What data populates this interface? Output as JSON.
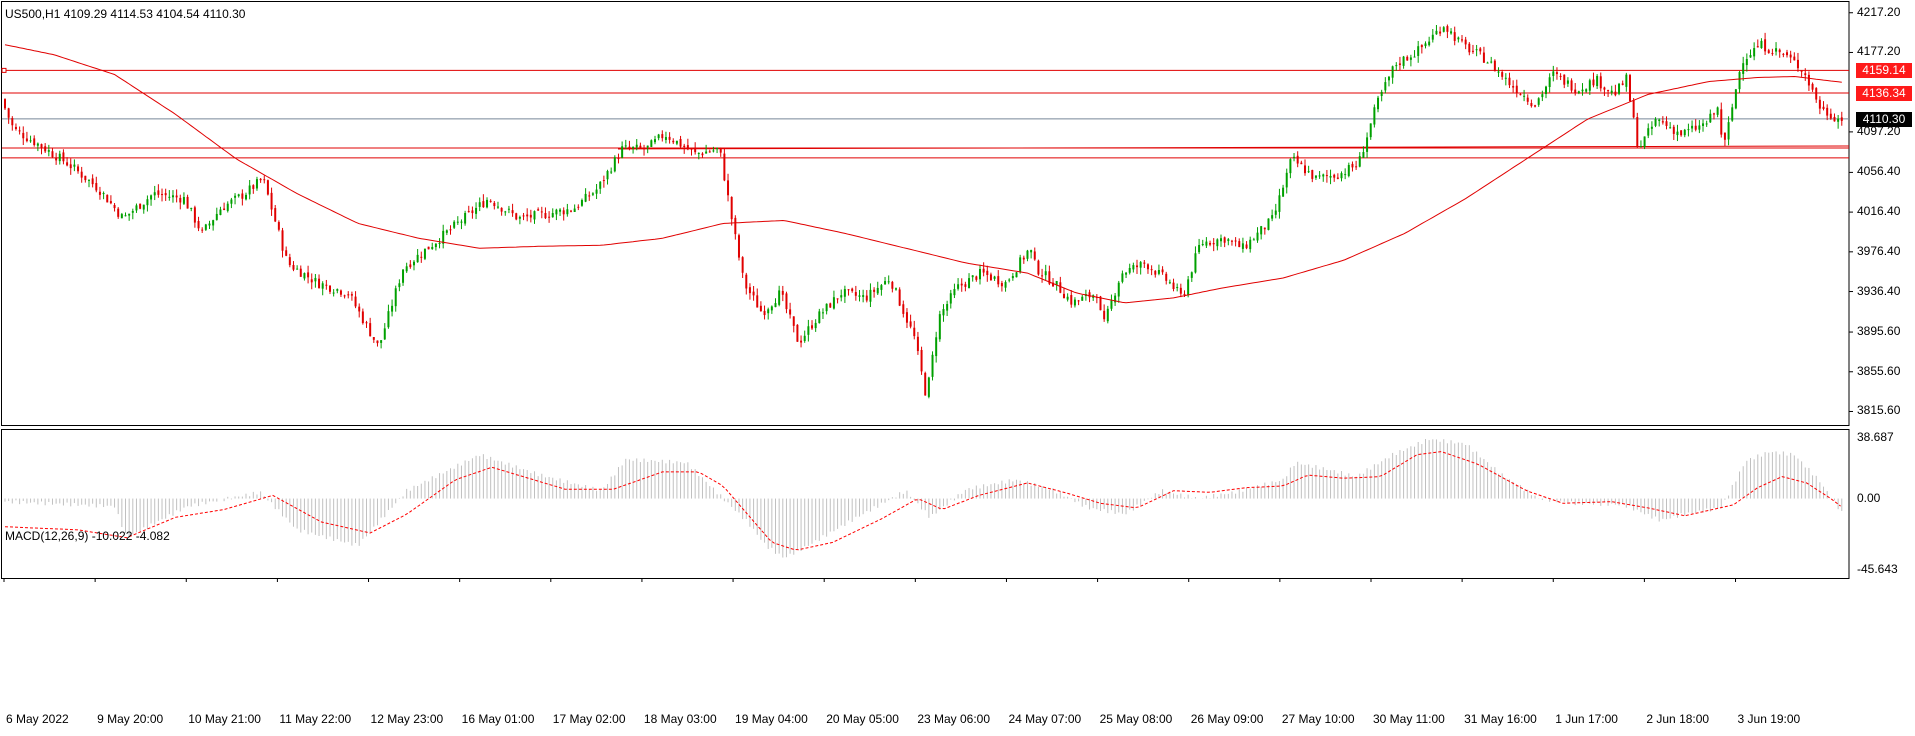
{
  "header": {
    "symbol_info": "US500,H1  4109.29 4114.53 4104.54 4110.30",
    "indicator_label": "MACD(12,26,9) -10.022 -4.082"
  },
  "colors": {
    "bull": "#00a000",
    "bear": "#e00000",
    "ma": "#e00000",
    "level": "#e00000",
    "bid_line": "#778899",
    "macd_hist": "#c0c0c0",
    "signal": "#ff0000",
    "tag_red": "#ff1a1a",
    "tag_black": "#000000"
  },
  "price_axis": {
    "ticks": [
      "4217.20",
      "4177.20",
      "4097.20",
      "4056.40",
      "4016.40",
      "3976.40",
      "3936.40",
      "3895.60",
      "3855.60",
      "3815.60"
    ],
    "tags": [
      {
        "value": 4159.14,
        "text": "4159.14",
        "style": "red"
      },
      {
        "value": 4136.34,
        "text": "4136.34",
        "style": "red"
      },
      {
        "value": 4110.3,
        "text": "4110.30",
        "style": "black"
      }
    ]
  },
  "macd_axis": {
    "ticks": [
      "38.687",
      "0.00",
      "-45.643"
    ]
  },
  "time_axis": {
    "labels": [
      "6 May 2022",
      "9 May 20:00",
      "10 May 21:00",
      "11 May 22:00",
      "12 May 23:00",
      "16 May 01:00",
      "17 May 02:00",
      "18 May 03:00",
      "19 May 04:00",
      "20 May 05:00",
      "23 May 06:00",
      "24 May 07:00",
      "25 May 08:00",
      "26 May 09:00",
      "27 May 10:00",
      "30 May 11:00",
      "31 May 16:00",
      "1 Jun 17:00",
      "2 Jun 18:00",
      "3 Jun 19:00"
    ]
  },
  "chart_data": {
    "type": "candlestick",
    "symbol": "US500",
    "timeframe": "H1",
    "price_range": [
      3805,
      4225
    ],
    "macd_range": [
      -45.643,
      38.687
    ],
    "horizontal_levels": [
      4159.14,
      4136.34,
      4110.3,
      4081.0,
      4071.0
    ],
    "price_path": [
      [
        0,
        4130
      ],
      [
        10,
        4100
      ],
      [
        30,
        4085
      ],
      [
        55,
        4065
      ],
      [
        80,
        4040
      ],
      [
        100,
        4010
      ],
      [
        125,
        4035
      ],
      [
        150,
        4030
      ],
      [
        165,
        3995
      ],
      [
        180,
        4020
      ],
      [
        200,
        4035
      ],
      [
        215,
        4050
      ],
      [
        235,
        3965
      ],
      [
        260,
        3945
      ],
      [
        285,
        3935
      ],
      [
        310,
        3880
      ],
      [
        330,
        3960
      ],
      [
        355,
        3985
      ],
      [
        380,
        4010
      ],
      [
        400,
        4030
      ],
      [
        425,
        4010
      ],
      [
        450,
        4015
      ],
      [
        470,
        4020
      ],
      [
        490,
        4040
      ],
      [
        510,
        4080
      ],
      [
        530,
        4080
      ],
      [
        545,
        4095
      ],
      [
        570,
        4075
      ],
      [
        590,
        4080
      ],
      [
        600,
        4010
      ],
      [
        610,
        3945
      ],
      [
        625,
        3915
      ],
      [
        640,
        3935
      ],
      [
        655,
        3885
      ],
      [
        670,
        3910
      ],
      [
        690,
        3935
      ],
      [
        710,
        3930
      ],
      [
        730,
        3950
      ],
      [
        750,
        3890
      ],
      [
        760,
        3830
      ],
      [
        770,
        3910
      ],
      [
        785,
        3940
      ],
      [
        805,
        3955
      ],
      [
        825,
        3945
      ],
      [
        845,
        3980
      ],
      [
        850,
        3960
      ],
      [
        865,
        3945
      ],
      [
        880,
        3925
      ],
      [
        900,
        3935
      ],
      [
        905,
        3900
      ],
      [
        920,
        3955
      ],
      [
        940,
        3965
      ],
      [
        960,
        3945
      ],
      [
        970,
        3930
      ],
      [
        985,
        3985
      ],
      [
        1005,
        3990
      ],
      [
        1020,
        3980
      ],
      [
        1045,
        4010
      ],
      [
        1060,
        4070
      ],
      [
        1080,
        4050
      ],
      [
        1100,
        4055
      ],
      [
        1115,
        4065
      ],
      [
        1130,
        4125
      ],
      [
        1145,
        4165
      ],
      [
        1165,
        4180
      ],
      [
        1185,
        4205
      ],
      [
        1200,
        4185
      ],
      [
        1220,
        4170
      ],
      [
        1240,
        4145
      ],
      [
        1260,
        4125
      ],
      [
        1275,
        4155
      ],
      [
        1295,
        4140
      ],
      [
        1310,
        4150
      ],
      [
        1325,
        4135
      ],
      [
        1335,
        4150
      ],
      [
        1345,
        4080
      ],
      [
        1360,
        4110
      ],
      [
        1380,
        4095
      ],
      [
        1400,
        4105
      ],
      [
        1410,
        4120
      ],
      [
        1415,
        4080
      ],
      [
        1430,
        4170
      ],
      [
        1445,
        4185
      ],
      [
        1465,
        4175
      ],
      [
        1480,
        4160
      ],
      [
        1495,
        4120
      ],
      [
        1510,
        4110
      ]
    ],
    "moving_average": [
      [
        0,
        4185
      ],
      [
        40,
        4175
      ],
      [
        90,
        4155
      ],
      [
        140,
        4115
      ],
      [
        190,
        4070
      ],
      [
        240,
        4035
      ],
      [
        290,
        4005
      ],
      [
        340,
        3990
      ],
      [
        390,
        3980
      ],
      [
        440,
        3982
      ],
      [
        490,
        3983
      ],
      [
        540,
        3990
      ],
      [
        590,
        4005
      ],
      [
        640,
        4008
      ],
      [
        690,
        3995
      ],
      [
        740,
        3980
      ],
      [
        790,
        3965
      ],
      [
        840,
        3955
      ],
      [
        880,
        3935
      ],
      [
        920,
        3925
      ],
      [
        960,
        3930
      ],
      [
        1000,
        3940
      ],
      [
        1050,
        3950
      ],
      [
        1100,
        3968
      ],
      [
        1150,
        3995
      ],
      [
        1200,
        4030
      ],
      [
        1250,
        4070
      ],
      [
        1300,
        4110
      ],
      [
        1350,
        4135
      ],
      [
        1400,
        4148
      ],
      [
        1440,
        4152
      ],
      [
        1470,
        4153
      ],
      [
        1510,
        4147
      ]
    ],
    "macd_histogram": [
      [
        0,
        -2
      ],
      [
        90,
        -5
      ],
      [
        100,
        -25
      ],
      [
        150,
        -5
      ],
      [
        210,
        4
      ],
      [
        240,
        -20
      ],
      [
        290,
        -30
      ],
      [
        330,
        5
      ],
      [
        390,
        28
      ],
      [
        440,
        15
      ],
      [
        490,
        5
      ],
      [
        510,
        25
      ],
      [
        560,
        23
      ],
      [
        590,
        0
      ],
      [
        610,
        -15
      ],
      [
        625,
        -30
      ],
      [
        640,
        -38
      ],
      [
        660,
        -30
      ],
      [
        700,
        -12
      ],
      [
        740,
        5
      ],
      [
        760,
        -12
      ],
      [
        790,
        6
      ],
      [
        830,
        12
      ],
      [
        860,
        6
      ],
      [
        890,
        -6
      ],
      [
        920,
        -10
      ],
      [
        950,
        5
      ],
      [
        980,
        0
      ],
      [
        1010,
        4
      ],
      [
        1050,
        12
      ],
      [
        1060,
        23
      ],
      [
        1090,
        18
      ],
      [
        1110,
        14
      ],
      [
        1140,
        28
      ],
      [
        1170,
        38
      ],
      [
        1200,
        35
      ],
      [
        1230,
        15
      ],
      [
        1260,
        0
      ],
      [
        1290,
        -3
      ],
      [
        1330,
        -4
      ],
      [
        1360,
        -14
      ],
      [
        1380,
        -10
      ],
      [
        1410,
        -6
      ],
      [
        1430,
        24
      ],
      [
        1450,
        30
      ],
      [
        1470,
        28
      ],
      [
        1490,
        12
      ],
      [
        1510,
        -10
      ]
    ],
    "macd_signal": [
      [
        0,
        -18
      ],
      [
        60,
        -20
      ],
      [
        100,
        -25
      ],
      [
        140,
        -12
      ],
      [
        180,
        -7
      ],
      [
        220,
        2
      ],
      [
        260,
        -15
      ],
      [
        300,
        -22
      ],
      [
        330,
        -10
      ],
      [
        370,
        12
      ],
      [
        400,
        20
      ],
      [
        430,
        13
      ],
      [
        460,
        6
      ],
      [
        500,
        6
      ],
      [
        540,
        17
      ],
      [
        570,
        17
      ],
      [
        590,
        8
      ],
      [
        610,
        -10
      ],
      [
        630,
        -28
      ],
      [
        650,
        -33
      ],
      [
        680,
        -28
      ],
      [
        720,
        -13
      ],
      [
        750,
        0
      ],
      [
        770,
        -7
      ],
      [
        800,
        2
      ],
      [
        840,
        10
      ],
      [
        870,
        4
      ],
      [
        900,
        -3
      ],
      [
        930,
        -6
      ],
      [
        960,
        5
      ],
      [
        990,
        4
      ],
      [
        1020,
        7
      ],
      [
        1050,
        8
      ],
      [
        1070,
        15
      ],
      [
        1100,
        13
      ],
      [
        1130,
        14
      ],
      [
        1160,
        28
      ],
      [
        1180,
        30
      ],
      [
        1210,
        22
      ],
      [
        1250,
        5
      ],
      [
        1280,
        -3
      ],
      [
        1320,
        -2
      ],
      [
        1350,
        -6
      ],
      [
        1380,
        -11
      ],
      [
        1420,
        -4
      ],
      [
        1440,
        7
      ],
      [
        1460,
        14
      ],
      [
        1480,
        10
      ],
      [
        1500,
        0
      ],
      [
        1510,
        -6
      ]
    ]
  }
}
